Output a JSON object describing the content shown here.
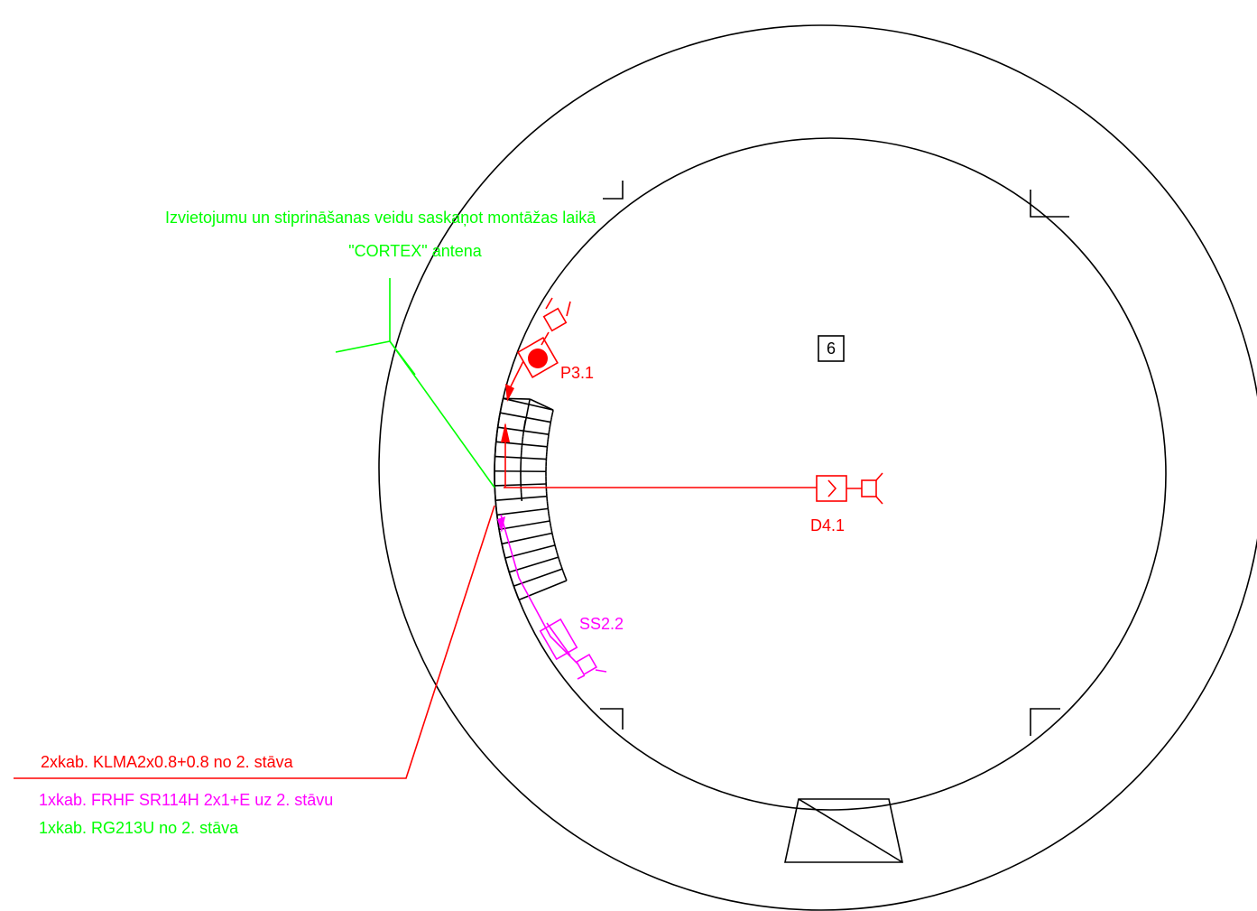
{
  "notes": {
    "mounting": "Izvietojumu un stiprināšanas veidu saskaņot montāžas laikā",
    "antenna": "\"CORTEX\" antena"
  },
  "room": "6",
  "devices": {
    "p": "P3.1",
    "d": "D4.1",
    "ss": "SS2.2"
  },
  "cables": {
    "klma": "2xkab. KLMA2x0.8+0.8 no 2. stāva",
    "frhf": "1xkab. FRHF SR114H 2x1+E uz 2. stāvu",
    "rg": "1xkab. RG213U no 2. stāva"
  }
}
